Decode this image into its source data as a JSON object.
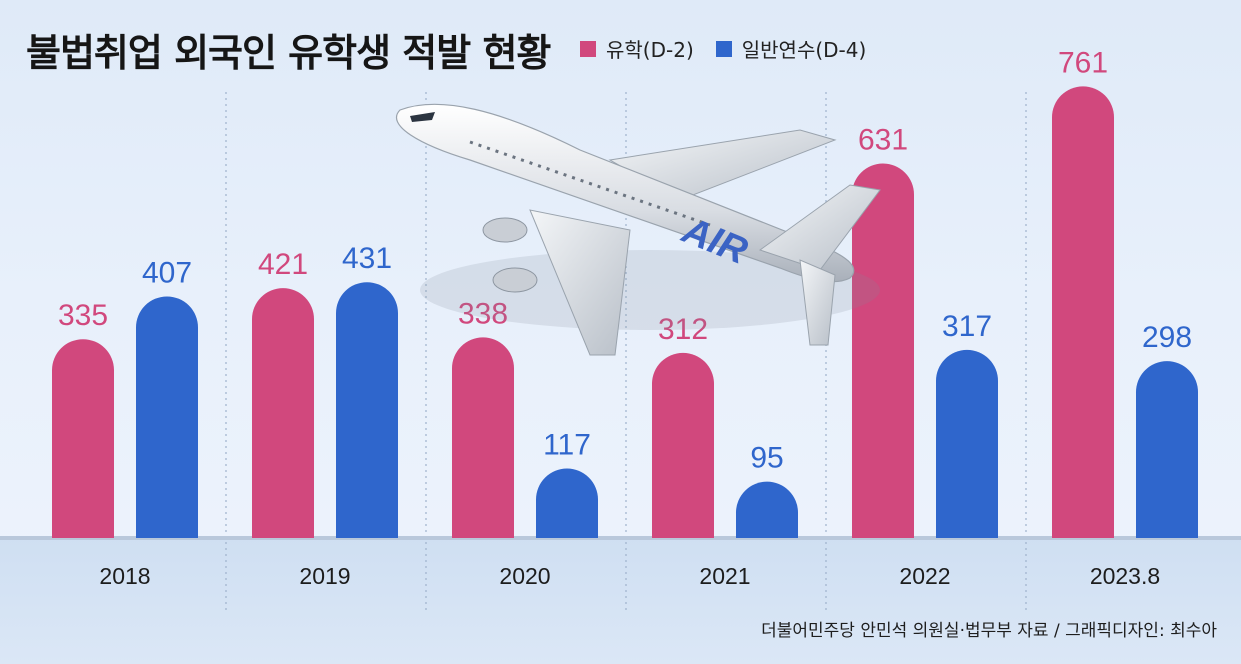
{
  "title": "불법취업 외국인 유학생 적발 현황",
  "legend": [
    {
      "label": "유학(D-2)",
      "color": "#d1487d"
    },
    {
      "label": "일반연수(D-4)",
      "color": "#2f66cc"
    }
  ],
  "source": "더불어민주당 안민석 의원실·법무부 자료 / 그래픽디자인: 최수아",
  "plane_text": "AIR",
  "chart_data": {
    "type": "bar",
    "title": "불법취업 외국인 유학생 적발 현황",
    "categories": [
      "2018",
      "2019",
      "2020",
      "2021",
      "2022",
      "2023.8"
    ],
    "series": [
      {
        "name": "유학(D-2)",
        "values": [
          335,
          421,
          338,
          312,
          631,
          761
        ],
        "color": "#d1487d"
      },
      {
        "name": "일반연수(D-4)",
        "values": [
          407,
          431,
          117,
          95,
          317,
          298
        ],
        "color": "#2f66cc"
      }
    ],
    "ylim": [
      0,
      800
    ],
    "grid": false,
    "legend_position": "top"
  }
}
